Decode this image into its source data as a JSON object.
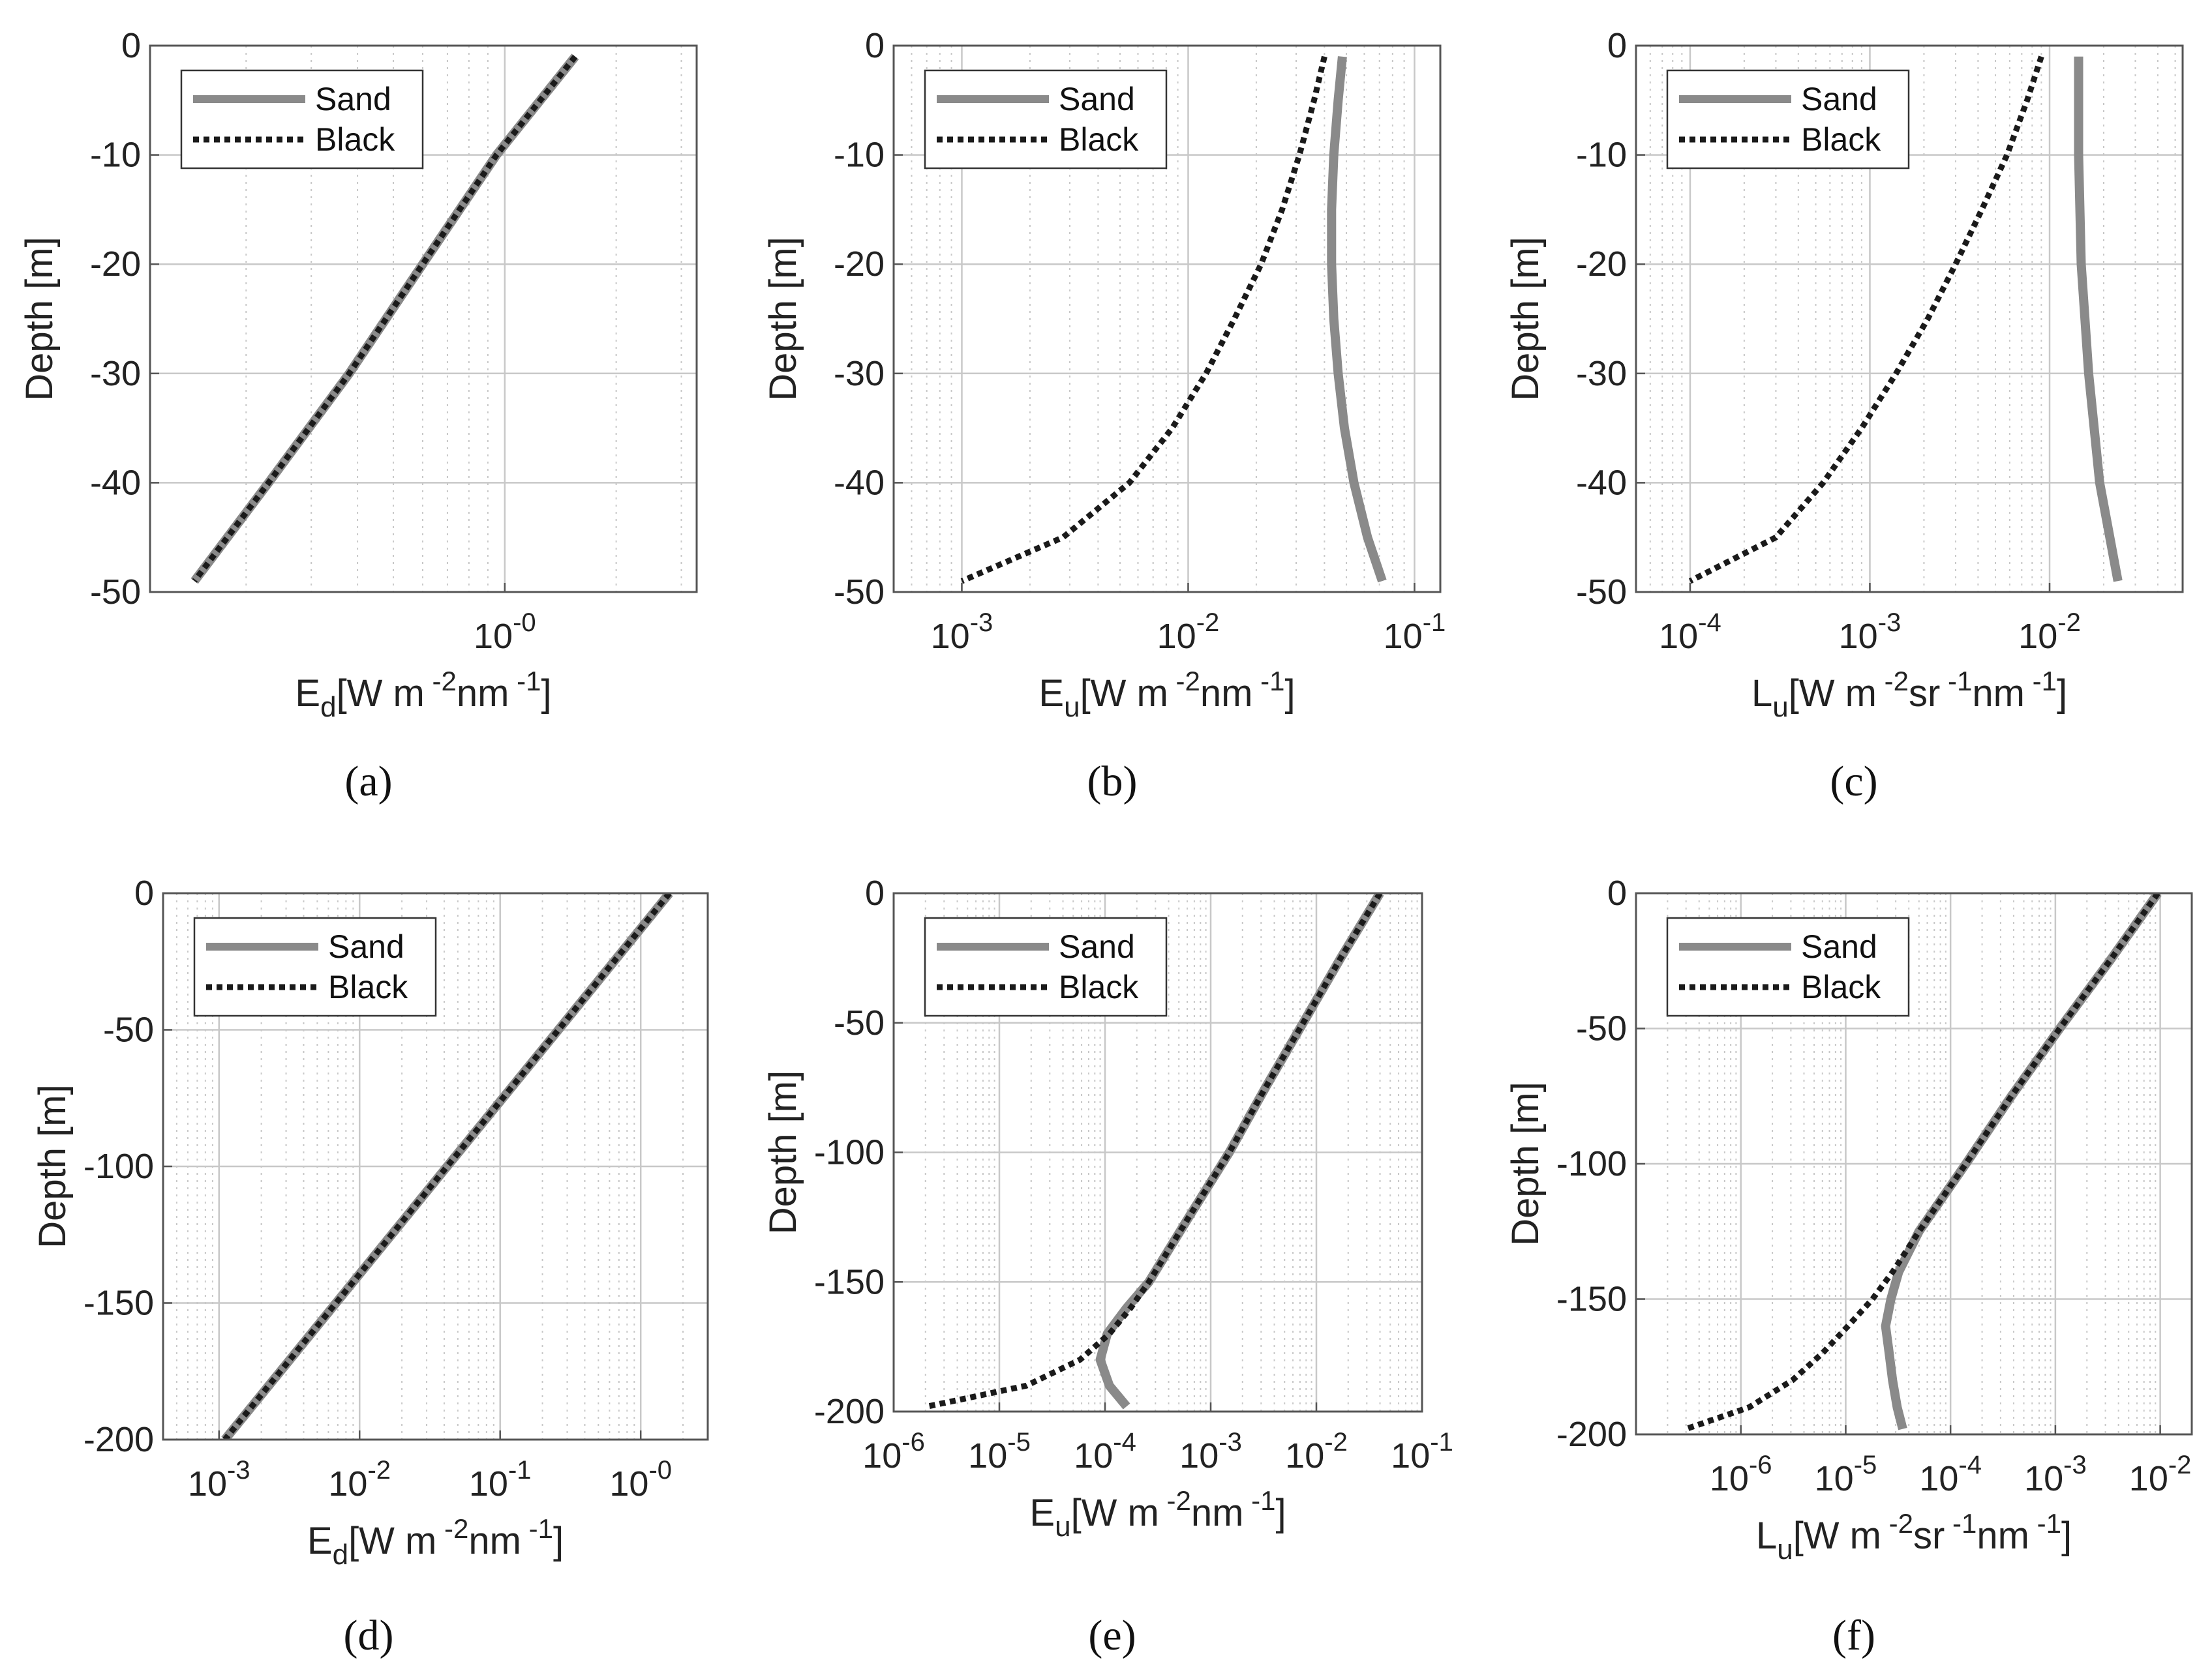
{
  "colors": {
    "sand": "#8a8a8a",
    "black": "#1a1a1a",
    "grid": "#c8c8c8",
    "axis": "#555555"
  },
  "chart_data": [
    {
      "type": "line",
      "panel": "(a)",
      "xscale": "log",
      "xlim": [
        0.11,
        3.3
      ],
      "ylim": [
        -50,
        0
      ],
      "xticks": [
        {
          "exp": "-0",
          "v": 1
        }
      ],
      "yticks": [
        0,
        -10,
        -20,
        -30,
        -40,
        -50
      ],
      "ylabel": "Depth [m]",
      "xlabel": {
        "sym": "E",
        "sub": "d",
        "unit": "[W m",
        "e1": " -2",
        "u2": "nm",
        "e2": " -1",
        "end": "]"
      },
      "legend": [
        "Sand",
        "Black"
      ],
      "series": [
        {
          "name": "Sand",
          "y": [
            -1,
            -10,
            -20,
            -30,
            -40,
            -49
          ],
          "x": [
            1.55,
            0.95,
            0.6,
            0.38,
            0.23,
            0.145
          ]
        },
        {
          "name": "Black",
          "y": [
            -1,
            -10,
            -20,
            -30,
            -40,
            -49
          ],
          "x": [
            1.55,
            0.95,
            0.6,
            0.38,
            0.23,
            0.145
          ]
        }
      ]
    },
    {
      "type": "line",
      "panel": "(b)",
      "xscale": "log",
      "xlim": [
        0.0005,
        0.13
      ],
      "ylim": [
        -50,
        0
      ],
      "xticks": [
        {
          "exp": "-3",
          "v": 0.001
        },
        {
          "exp": "-2",
          "v": 0.01
        },
        {
          "exp": "-1",
          "v": 0.1
        }
      ],
      "yticks": [
        0,
        -10,
        -20,
        -30,
        -40,
        -50
      ],
      "ylabel": "Depth [m]",
      "xlabel": {
        "sym": "E",
        "sub": "u",
        "unit": "[W m",
        "e1": " -2",
        "u2": "nm",
        "e2": " -1",
        "end": "]"
      },
      "legend": [
        "Sand",
        "Black"
      ],
      "series": [
        {
          "name": "Sand",
          "y": [
            -1,
            -5,
            -10,
            -15,
            -20,
            -25,
            -30,
            -35,
            -40,
            -45,
            -49
          ],
          "x": [
            0.048,
            0.046,
            0.044,
            0.043,
            0.043,
            0.044,
            0.046,
            0.049,
            0.054,
            0.062,
            0.072
          ]
        },
        {
          "name": "Black",
          "y": [
            -1,
            -5,
            -10,
            -15,
            -20,
            -25,
            -30,
            -35,
            -40,
            -45,
            -49
          ],
          "x": [
            0.04,
            0.036,
            0.031,
            0.026,
            0.021,
            0.016,
            0.012,
            0.0085,
            0.0055,
            0.0028,
            0.001
          ]
        }
      ]
    },
    {
      "type": "line",
      "panel": "(c)",
      "xscale": "log",
      "xlim": [
        5e-05,
        0.055
      ],
      "ylim": [
        -50,
        0
      ],
      "xticks": [
        {
          "exp": "-4",
          "v": 0.0001
        },
        {
          "exp": "-3",
          "v": 0.001
        },
        {
          "exp": "-2",
          "v": 0.01
        }
      ],
      "yticks": [
        0,
        -10,
        -20,
        -30,
        -40,
        -50
      ],
      "ylabel": "Depth [m]",
      "xlabel": {
        "sym": "L",
        "sub": "u",
        "unit": "[W m",
        "e1": " -2",
        "u2": "sr",
        "e2": " -1",
        "u3": "nm",
        "e3": " -1",
        "end": "]"
      },
      "legend": [
        "Sand",
        "Black"
      ],
      "series": [
        {
          "name": "Sand",
          "y": [
            -1,
            -10,
            -20,
            -30,
            -40,
            -49
          ],
          "x": [
            0.0145,
            0.0145,
            0.015,
            0.0165,
            0.019,
            0.024
          ]
        },
        {
          "name": "Black",
          "y": [
            -1,
            -5,
            -10,
            -15,
            -20,
            -25,
            -30,
            -35,
            -40,
            -45,
            -49
          ],
          "x": [
            0.009,
            0.0075,
            0.0058,
            0.0042,
            0.003,
            0.0021,
            0.0014,
            0.0009,
            0.00055,
            0.0003,
            0.0001
          ]
        }
      ]
    },
    {
      "type": "line",
      "panel": "(d)",
      "xscale": "log",
      "xlim": [
        0.0004,
        3
      ],
      "ylim": [
        -200,
        0
      ],
      "xticks": [
        {
          "exp": "-3",
          "v": 0.001
        },
        {
          "exp": "-2",
          "v": 0.01
        },
        {
          "exp": "-1",
          "v": 0.1
        },
        {
          "exp": "-0",
          "v": 1
        }
      ],
      "yticks": [
        0,
        -50,
        -100,
        -150,
        -200
      ],
      "ylabel": "Depth [m]",
      "xlabel": {
        "sym": "E",
        "sub": "d",
        "unit": "[W m",
        "e1": " -2",
        "u2": "nm",
        "e2": " -1",
        "end": "]"
      },
      "legend": [
        "Sand",
        "Black"
      ],
      "series": [
        {
          "name": "Sand",
          "y": [
            0,
            -50,
            -100,
            -150,
            -200
          ],
          "x": [
            1.6,
            0.26,
            0.042,
            0.0068,
            0.0011
          ]
        },
        {
          "name": "Black",
          "y": [
            0,
            -50,
            -100,
            -150,
            -200
          ],
          "x": [
            1.6,
            0.26,
            0.042,
            0.0068,
            0.0011
          ]
        }
      ]
    },
    {
      "type": "line",
      "panel": "(e)",
      "xscale": "log",
      "xlim": [
        1e-06,
        0.1
      ],
      "ylim": [
        -200,
        0
      ],
      "xticks": [
        {
          "exp": "-6",
          "v": 1e-06
        },
        {
          "exp": "-5",
          "v": 1e-05
        },
        {
          "exp": "-4",
          "v": 0.0001
        },
        {
          "exp": "-3",
          "v": 0.001
        },
        {
          "exp": "-2",
          "v": 0.01
        },
        {
          "exp": "-1",
          "v": 0.1
        }
      ],
      "yticks": [
        0,
        -50,
        -100,
        -150,
        -200
      ],
      "ylabel": "Depth [m]",
      "xlabel": {
        "sym": "E",
        "sub": "u",
        "unit": "[W m",
        "e1": " -2",
        "u2": "nm",
        "e2": " -1",
        "end": "]"
      },
      "legend": [
        "Sand",
        "Black"
      ],
      "series": [
        {
          "name": "Sand",
          "y": [
            0,
            -25,
            -50,
            -75,
            -100,
            -125,
            -150,
            -160,
            -170,
            -180,
            -190,
            -198
          ],
          "x": [
            0.04,
            0.017,
            0.0075,
            0.0033,
            0.0015,
            0.00062,
            0.00026,
            0.00016,
            0.000105,
            9e-05,
            0.00011,
            0.00016
          ]
        },
        {
          "name": "Black",
          "y": [
            0,
            -25,
            -50,
            -75,
            -100,
            -125,
            -150,
            -160,
            -170,
            -180,
            -190,
            -198
          ],
          "x": [
            0.04,
            0.017,
            0.0075,
            0.0033,
            0.0015,
            0.00062,
            0.00026,
            0.000175,
            0.00011,
            5.8e-05,
            1.8e-05,
            2.1e-06
          ]
        }
      ]
    },
    {
      "type": "line",
      "panel": "(f)",
      "xscale": "log",
      "xlim": [
        1e-07,
        0.02
      ],
      "ylim": [
        -200,
        0
      ],
      "xticks": [
        {
          "exp": "-6",
          "v": 1e-06
        },
        {
          "exp": "-5",
          "v": 1e-05
        },
        {
          "exp": "-4",
          "v": 0.0001
        },
        {
          "exp": "-3",
          "v": 0.001
        },
        {
          "exp": "-2",
          "v": 0.01
        }
      ],
      "yticks": [
        0,
        -50,
        -100,
        -150,
        -200
      ],
      "ylabel": "Depth [m]",
      "xlabel": {
        "sym": "L",
        "sub": "u",
        "unit": "[W m",
        "e1": " -2",
        "u2": "sr",
        "e2": " -1",
        "u3": "nm",
        "e3": " -1",
        "end": "]"
      },
      "legend": [
        "Sand",
        "Black"
      ],
      "series": [
        {
          "name": "Sand",
          "y": [
            0,
            -25,
            -50,
            -75,
            -100,
            -125,
            -140,
            -150,
            -160,
            -170,
            -180,
            -190,
            -198
          ],
          "x": [
            0.0095,
            0.0033,
            0.0011,
            0.00038,
            0.00014,
            5e-05,
            3.2e-05,
            2.7e-05,
            2.4e-05,
            2.6e-05,
            2.8e-05,
            3.1e-05,
            3.5e-05
          ]
        },
        {
          "name": "Black",
          "y": [
            0,
            -25,
            -50,
            -75,
            -100,
            -125,
            -140,
            -150,
            -160,
            -170,
            -180,
            -190,
            -198
          ],
          "x": [
            0.0095,
            0.0033,
            0.0011,
            0.00038,
            0.00014,
            5e-05,
            2.8e-05,
            1.8e-05,
            1.05e-05,
            6e-06,
            3.1e-06,
            1.2e-06,
            3e-07
          ]
        }
      ]
    }
  ],
  "captions": [
    "(a)",
    "(b)",
    "(c)",
    "(d)",
    "(e)",
    "(f)"
  ]
}
